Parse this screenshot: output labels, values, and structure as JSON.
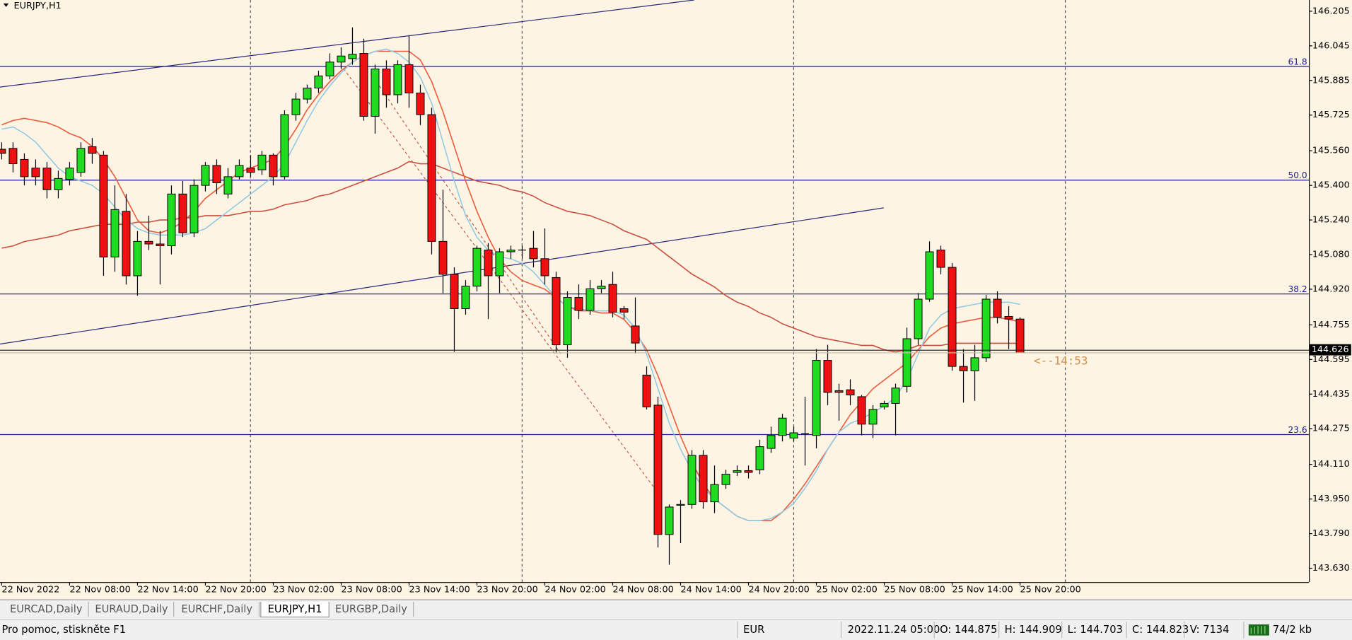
{
  "chart_data": {
    "type": "candlestick",
    "title": "EURJPY,H1",
    "categories": [
      "22 Nov 2022",
      null,
      null,
      null,
      null,
      null,
      "22 Nov 08:00",
      null,
      null,
      null,
      null,
      null,
      "22 Nov 14:00",
      null,
      null,
      null,
      null,
      null,
      "22 Nov 20:00",
      null,
      null,
      null,
      null,
      null,
      "23 Nov 02:00",
      null,
      null,
      null,
      null,
      null,
      "23 Nov 08:00",
      null,
      null,
      null,
      null,
      null,
      "23 Nov 14:00",
      null,
      null,
      null,
      null,
      null,
      "23 Nov 20:00",
      null,
      null,
      null,
      null,
      null,
      "24 Nov 02:00",
      null,
      null,
      null,
      null,
      null,
      "24 Nov 08:00",
      null,
      null,
      null,
      null,
      null,
      "24 Nov 14:00",
      null,
      null,
      null,
      null,
      null,
      "24 Nov 20:00",
      null,
      null,
      null,
      null,
      null,
      "25 Nov 02:00",
      null,
      null,
      null,
      null,
      null,
      "25 Nov 08:00",
      null,
      null,
      null,
      null,
      null,
      "25 Nov 14:00",
      null,
      null,
      null,
      null,
      null,
      "25 Nov 20:00"
    ],
    "open": [
      145.567,
      145.571,
      145.52,
      145.48,
      145.48,
      145.38,
      145.428,
      145.46,
      145.579,
      145.54,
      145.069,
      145.28,
      144.982,
      145.141,
      145.129,
      145.121,
      145.36,
      145.181,
      145.4,
      145.492,
      145.36,
      145.44,
      145.48,
      145.472,
      145.54,
      145.44,
      145.727,
      145.799,
      145.85,
      145.906,
      145.97,
      145.986,
      146.01,
      145.719,
      145.938,
      145.819,
      145.958,
      145.827,
      145.727,
      145.141,
      144.989,
      144.83,
      144.934,
      145.101,
      144.982,
      145.093,
      145.101,
      145.109,
      145.061,
      144.974,
      144.663,
      144.882,
      144.822,
      144.922,
      144.942,
      144.83,
      144.75,
      144.523,
      144.384,
      143.786,
      143.921,
      143.925,
      144.152,
      143.937,
      144.017,
      144.073,
      144.081,
      144.085,
      144.184,
      144.244,
      144.232,
      144.252,
      144.244,
      144.591,
      144.451,
      144.455,
      144.423,
      144.296,
      144.376,
      144.392,
      144.471,
      144.691,
      144.874,
      145.101,
      145.021,
      144.563,
      144.543,
      144.603,
      144.874,
      144.794,
      144.782
    ],
    "high": [
      145.599,
      145.599,
      145.548,
      145.52,
      145.508,
      145.468,
      145.508,
      145.599,
      145.619,
      145.559,
      145.4,
      145.36,
      145.189,
      145.26,
      145.189,
      145.4,
      145.42,
      145.428,
      145.508,
      145.52,
      145.48,
      145.52,
      145.54,
      145.559,
      145.548,
      145.747,
      145.827,
      145.866,
      145.93,
      146.01,
      146.038,
      146.13,
      146.078,
      145.958,
      145.978,
      145.978,
      146.09,
      145.866,
      145.759,
      145.38,
      145.021,
      144.962,
      145.121,
      145.133,
      145.109,
      145.121,
      145.121,
      145.189,
      145.201,
      145.001,
      144.91,
      144.942,
      144.962,
      144.962,
      145.001,
      144.842,
      144.882,
      144.563,
      144.423,
      143.925,
      143.945,
      144.176,
      144.176,
      144.105,
      144.085,
      144.105,
      144.105,
      144.224,
      144.284,
      144.344,
      144.284,
      144.423,
      144.643,
      144.663,
      144.483,
      144.503,
      144.431,
      144.384,
      144.404,
      144.483,
      144.742,
      144.902,
      145.141,
      145.121,
      145.041,
      144.643,
      144.663,
      144.894,
      144.91,
      144.842,
      144.79
    ],
    "low": [
      145.52,
      145.46,
      145.4,
      145.4,
      145.34,
      145.34,
      145.4,
      145.44,
      145.5,
      144.982,
      145.001,
      144.942,
      144.89,
      145.101,
      144.942,
      145.081,
      145.161,
      145.161,
      145.372,
      145.36,
      145.34,
      145.428,
      145.44,
      145.448,
      145.4,
      145.428,
      145.699,
      145.779,
      145.827,
      145.89,
      145.938,
      145.958,
      145.699,
      145.639,
      145.759,
      145.779,
      145.759,
      145.679,
      145.081,
      144.902,
      144.631,
      144.802,
      144.91,
      144.782,
      144.902,
      145.061,
      145.061,
      145.021,
      144.942,
      144.623,
      144.603,
      144.782,
      144.802,
      144.902,
      144.79,
      144.782,
      144.623,
      144.364,
      143.726,
      143.646,
      143.746,
      143.905,
      143.905,
      143.885,
      143.997,
      144.057,
      144.045,
      144.065,
      144.164,
      144.216,
      144.216,
      144.105,
      144.184,
      144.384,
      144.312,
      144.384,
      144.244,
      144.232,
      144.364,
      144.244,
      144.443,
      144.663,
      144.862,
      144.989,
      144.543,
      144.396,
      144.404,
      144.583,
      144.762,
      144.643,
      144.626
    ],
    "close": [
      145.548,
      145.5,
      145.44,
      145.44,
      145.38,
      145.432,
      145.48,
      145.571,
      145.548,
      145.069,
      145.288,
      144.982,
      145.141,
      145.129,
      145.121,
      145.36,
      145.181,
      145.4,
      145.492,
      145.412,
      145.44,
      145.492,
      145.46,
      145.54,
      145.44,
      145.727,
      145.799,
      145.85,
      145.906,
      145.97,
      145.998,
      146.006,
      145.719,
      145.938,
      145.819,
      145.958,
      145.827,
      145.727,
      145.141,
      144.989,
      144.83,
      144.934,
      145.109,
      144.982,
      145.093,
      145.101,
      145.101,
      145.061,
      144.982,
      144.663,
      144.882,
      144.822,
      144.922,
      144.934,
      144.814,
      144.814,
      144.671,
      144.376,
      143.786,
      143.913,
      143.925,
      144.152,
      143.937,
      144.017,
      144.065,
      144.081,
      144.073,
      144.192,
      144.244,
      144.324,
      144.256,
      144.252,
      144.591,
      144.443,
      144.443,
      144.431,
      144.296,
      144.364,
      144.392,
      144.463,
      144.691,
      144.874,
      145.093,
      145.021,
      144.563,
      144.543,
      144.603,
      144.874,
      144.79,
      144.782,
      144.626
    ],
    "up_color": "#1fdc1f",
    "down_color": "#ee1111",
    "indicators": [
      {
        "color": "#c9503f",
        "values": [
          145.11,
          145.12,
          145.14,
          145.15,
          145.16,
          145.17,
          145.19,
          145.2,
          145.21,
          145.22,
          145.22,
          145.22,
          145.23,
          145.23,
          145.24,
          145.24,
          145.25,
          145.25,
          145.26,
          145.26,
          145.26,
          145.27,
          145.28,
          145.28,
          145.29,
          145.31,
          145.32,
          145.33,
          145.35,
          145.36,
          145.38,
          145.4,
          145.42,
          145.44,
          145.46,
          145.48,
          145.51,
          145.5,
          145.5,
          145.48,
          145.46,
          145.44,
          145.42,
          145.41,
          145.4,
          145.38,
          145.37,
          145.35,
          145.32,
          145.3,
          145.28,
          145.27,
          145.26,
          145.24,
          145.22,
          145.19,
          145.17,
          145.15,
          145.11,
          145.07,
          145.03,
          144.99,
          144.96,
          144.93,
          144.89,
          144.86,
          144.84,
          144.81,
          144.79,
          144.76,
          144.74,
          144.72,
          144.7,
          144.69,
          144.68,
          144.67,
          144.66,
          144.66,
          144.64,
          144.63,
          144.64,
          144.66,
          144.66,
          144.66,
          144.67,
          144.67,
          144.67,
          144.67,
          144.67,
          144.67,
          144.67
        ]
      },
      {
        "color": "#ec5a3c",
        "values": [
          145.68,
          145.7,
          145.71,
          145.7,
          145.69,
          145.67,
          145.64,
          145.62,
          145.58,
          145.52,
          145.44,
          145.34,
          145.24,
          145.19,
          145.18,
          145.2,
          145.23,
          145.28,
          145.34,
          145.38,
          145.42,
          145.46,
          145.48,
          145.5,
          145.52,
          145.58,
          145.66,
          145.75,
          145.82,
          145.88,
          145.93,
          145.97,
          146.0,
          146.02,
          146.02,
          146.02,
          146.02,
          145.98,
          145.88,
          145.74,
          145.58,
          145.42,
          145.28,
          145.16,
          145.06,
          145.0,
          144.96,
          144.94,
          144.92,
          144.88,
          144.84,
          144.82,
          144.82,
          144.81,
          144.81,
          144.78,
          144.72,
          144.64,
          144.52,
          144.38,
          144.24,
          144.12,
          144.02,
          143.95,
          143.91,
          143.87,
          143.85,
          143.85,
          143.85,
          143.89,
          143.95,
          144.02,
          144.1,
          144.18,
          144.26,
          144.34,
          144.4,
          144.46,
          144.5,
          144.54,
          144.58,
          144.64,
          144.7,
          144.74,
          144.76,
          144.77,
          144.78,
          144.79,
          144.79,
          144.78,
          144.77
        ]
      },
      {
        "color": "#93c9e3",
        "values": [
          145.66,
          145.67,
          145.64,
          145.6,
          145.54,
          145.48,
          145.44,
          145.42,
          145.4,
          145.36,
          145.3,
          145.24,
          145.2,
          145.18,
          145.17,
          145.17,
          145.17,
          145.18,
          145.2,
          145.24,
          145.28,
          145.32,
          145.36,
          145.4,
          145.44,
          145.5,
          145.6,
          145.7,
          145.79,
          145.86,
          145.92,
          145.97,
          146.0,
          146.02,
          146.03,
          146.01,
          145.97,
          145.9,
          145.78,
          145.6,
          145.42,
          145.26,
          145.16,
          145.1,
          145.07,
          145.06,
          145.04,
          145.0,
          144.94,
          144.88,
          144.84,
          144.83,
          144.82,
          144.82,
          144.82,
          144.8,
          144.74,
          144.62,
          144.46,
          144.3,
          144.18,
          144.08,
          144.0,
          143.95,
          143.91,
          143.87,
          143.85,
          143.85,
          143.86,
          143.89,
          143.93,
          144.0,
          144.08,
          144.18,
          144.26,
          144.3,
          144.32,
          144.35,
          144.38,
          144.42,
          144.5,
          144.62,
          144.74,
          144.8,
          144.83,
          144.84,
          144.85,
          144.86,
          144.86,
          144.86,
          144.85
        ]
      }
    ],
    "fib_levels": [
      {
        "label": "61.8",
        "price": 145.95
      },
      {
        "label": "50.0",
        "price": 145.424
      },
      {
        "label": "38.2",
        "price": 144.898
      },
      {
        "label": "23.6",
        "price": 144.248
      }
    ],
    "fib_color": "#1c1c8c",
    "countdown": "<--14:53",
    "ylim": [
      143.566,
      146.257
    ],
    "yticks": [
      146.205,
      146.045,
      145.885,
      145.725,
      {
        "value": 145.56,
        "label": "145.560"
      },
      {
        "value": 145.4,
        "label": "145.400"
      },
      {
        "value": 145.24,
        "label": "145.240"
      },
      {
        "value": 145.08,
        "label": "145.080"
      },
      {
        "value": 144.92,
        "label": "144.920"
      },
      144.755,
      144.595,
      144.435,
      144.275,
      {
        "value": 144.11,
        "label": "144.110"
      },
      {
        "value": 143.95,
        "label": "143.950"
      },
      {
        "value": 143.79,
        "label": "143.790"
      },
      {
        "value": 143.63,
        "label": "143.630"
      }
    ],
    "grid": false
  },
  "tabs": [
    "EURCAD,Daily",
    "EURAUD,Daily",
    "EURCHF,Daily",
    "EURJPY,H1",
    "EURGBP,Daily"
  ],
  "active_tab": 3,
  "status_bar": {
    "help": "Pro pomoc, stiskněte F1",
    "currency": "EUR",
    "time": "2022.11.24 05:00",
    "open": "O: 144.875",
    "high": "H: 144.909",
    "low": "L: 144.703",
    "close": "C: 144.823",
    "volume": "V: 7134",
    "traffic": "74/2 kb"
  }
}
